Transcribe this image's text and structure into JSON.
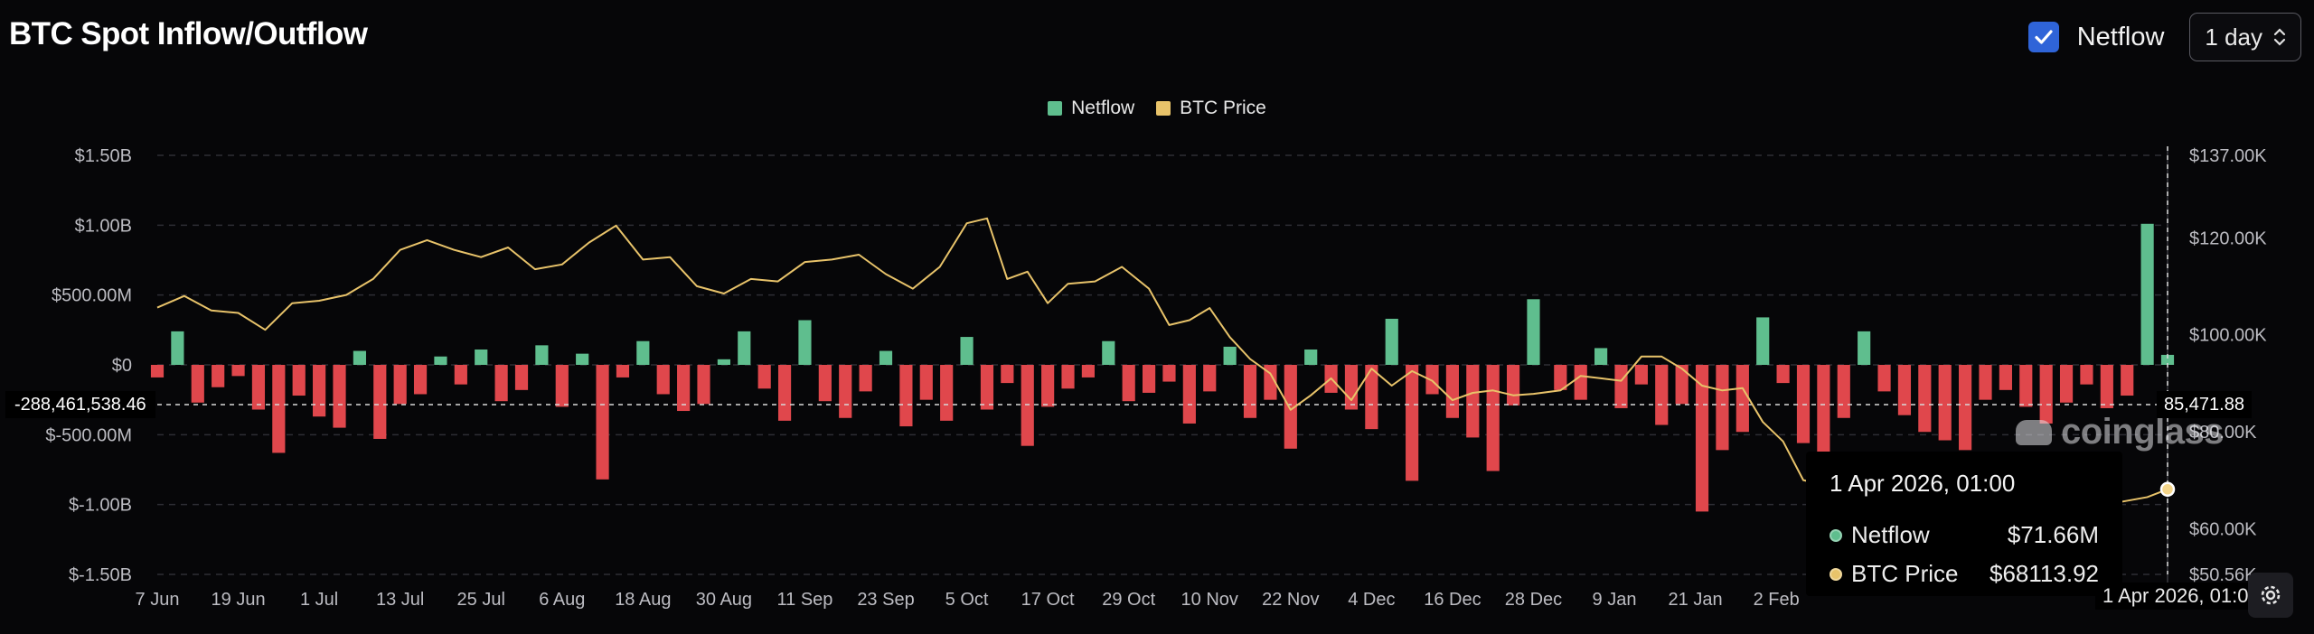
{
  "header": {
    "title": "BTC Spot Inflow/Outflow",
    "netflow_toggle_label": "Netflow",
    "netflow_checked": true,
    "interval_value": "1 day"
  },
  "legend": [
    {
      "label": "Netflow",
      "color": "#5fbe8e"
    },
    {
      "label": "BTC Price",
      "color": "#e8c36a"
    }
  ],
  "watermark": "coinglass",
  "tooltip": {
    "title": "1 Apr 2026, 01:00",
    "rows": [
      {
        "name": "Netflow",
        "value": "$71.66M",
        "color": "#5fbe8e"
      },
      {
        "name": "BTC Price",
        "value": "$68113.92",
        "color": "#e8c36a"
      }
    ]
  },
  "crosshair": {
    "left_value": "-288,461,538.46",
    "right_value": "85,471.88",
    "x_value": "1 Apr 2026, 01:00"
  },
  "colors": {
    "positive": "#5fbe8e",
    "negative": "#e0474c",
    "price": "#e8c36a",
    "grid": "#2e2e34"
  },
  "icons": {
    "checkbox": "check-icon",
    "select": "chevron-updown-icon",
    "settings": "gear-icon",
    "logo": "coinglass-logo-icon"
  },
  "chart_data": {
    "type": "bar",
    "title": "BTC Spot Inflow/Outflow",
    "left_axis": {
      "unit": "USD",
      "ticks": [
        1500000000,
        1000000000,
        500000000,
        0,
        -500000000,
        -1000000000,
        -1500000000
      ],
      "tick_labels": [
        "$1.50B",
        "$1.00B",
        "$500.00M",
        "$0",
        "$-500.00M",
        "$-1.00B",
        "$-1.50B"
      ],
      "ylim": [
        -1500000000,
        1500000000
      ]
    },
    "right_axis": {
      "unit": "USD",
      "ticks": [
        137000,
        120000,
        100000,
        80000,
        60000,
        50560
      ],
      "tick_labels": [
        "$137.00K",
        "$120.00K",
        "$100.00K",
        "$80.00K",
        "$60.00K",
        "$50.56K"
      ],
      "ylim": [
        50560,
        137000
      ]
    },
    "x_axis": {
      "start": "2025-06-07",
      "end": "2026-04-01",
      "tick_labels": [
        "7 Jun",
        "19 Jun",
        "1 Jul",
        "13 Jul",
        "25 Jul",
        "6 Aug",
        "18 Aug",
        "30 Aug",
        "11 Sep",
        "23 Sep",
        "5 Oct",
        "17 Oct",
        "29 Oct",
        "10 Nov",
        "22 Nov",
        "4 Dec",
        "16 Dec",
        "28 Dec",
        "9 Jan",
        "21 Jan",
        "2 Feb"
      ],
      "tick_dates": [
        "2025-06-07",
        "2025-06-19",
        "2025-07-01",
        "2025-07-13",
        "2025-07-25",
        "2025-08-06",
        "2025-08-18",
        "2025-08-30",
        "2025-09-11",
        "2025-09-23",
        "2025-10-05",
        "2025-10-17",
        "2025-10-29",
        "2025-11-10",
        "2025-11-22",
        "2025-12-04",
        "2025-12-16",
        "2025-12-28",
        "2026-01-09",
        "2026-01-21",
        "2026-02-02"
      ]
    },
    "series": [
      {
        "name": "Netflow",
        "type": "bar",
        "unit": "USD millions",
        "points": [
          [
            "2025-06-07",
            -90
          ],
          [
            "2025-06-10",
            240
          ],
          [
            "2025-06-13",
            -270
          ],
          [
            "2025-06-16",
            -160
          ],
          [
            "2025-06-19",
            -80
          ],
          [
            "2025-06-22",
            -320
          ],
          [
            "2025-06-25",
            -630
          ],
          [
            "2025-06-28",
            -220
          ],
          [
            "2025-07-01",
            -370
          ],
          [
            "2025-07-04",
            -450
          ],
          [
            "2025-07-07",
            100
          ],
          [
            "2025-07-10",
            -530
          ],
          [
            "2025-07-13",
            -280
          ],
          [
            "2025-07-16",
            -210
          ],
          [
            "2025-07-19",
            60
          ],
          [
            "2025-07-22",
            -140
          ],
          [
            "2025-07-25",
            110
          ],
          [
            "2025-07-28",
            -260
          ],
          [
            "2025-07-31",
            -180
          ],
          [
            "2025-08-03",
            140
          ],
          [
            "2025-08-06",
            -300
          ],
          [
            "2025-08-09",
            80
          ],
          [
            "2025-08-12",
            -820
          ],
          [
            "2025-08-15",
            -90
          ],
          [
            "2025-08-18",
            170
          ],
          [
            "2025-08-21",
            -210
          ],
          [
            "2025-08-24",
            -330
          ],
          [
            "2025-08-27",
            -280
          ],
          [
            "2025-08-30",
            40
          ],
          [
            "2025-09-02",
            240
          ],
          [
            "2025-09-05",
            -170
          ],
          [
            "2025-09-08",
            -400
          ],
          [
            "2025-09-11",
            320
          ],
          [
            "2025-09-14",
            -260
          ],
          [
            "2025-09-17",
            -380
          ],
          [
            "2025-09-20",
            -190
          ],
          [
            "2025-09-23",
            100
          ],
          [
            "2025-09-26",
            -440
          ],
          [
            "2025-09-29",
            -250
          ],
          [
            "2025-10-02",
            -400
          ],
          [
            "2025-10-05",
            200
          ],
          [
            "2025-10-08",
            -320
          ],
          [
            "2025-10-11",
            -130
          ],
          [
            "2025-10-14",
            -580
          ],
          [
            "2025-10-17",
            -300
          ],
          [
            "2025-10-20",
            -170
          ],
          [
            "2025-10-23",
            -90
          ],
          [
            "2025-10-26",
            170
          ],
          [
            "2025-10-29",
            -260
          ],
          [
            "2025-11-01",
            -200
          ],
          [
            "2025-11-04",
            -120
          ],
          [
            "2025-11-07",
            -420
          ],
          [
            "2025-11-10",
            -190
          ],
          [
            "2025-11-13",
            130
          ],
          [
            "2025-11-16",
            -380
          ],
          [
            "2025-11-19",
            -250
          ],
          [
            "2025-11-22",
            -600
          ],
          [
            "2025-11-25",
            110
          ],
          [
            "2025-11-28",
            -200
          ],
          [
            "2025-12-01",
            -320
          ],
          [
            "2025-12-04",
            -460
          ],
          [
            "2025-12-07",
            330
          ],
          [
            "2025-12-10",
            -830
          ],
          [
            "2025-12-13",
            -210
          ],
          [
            "2025-12-16",
            -380
          ],
          [
            "2025-12-19",
            -520
          ],
          [
            "2025-12-22",
            -760
          ],
          [
            "2025-12-25",
            -290
          ],
          [
            "2025-12-28",
            470
          ],
          [
            "2026-01-01",
            -180
          ],
          [
            "2026-01-04",
            -250
          ],
          [
            "2026-01-07",
            120
          ],
          [
            "2026-01-10",
            -310
          ],
          [
            "2026-01-13",
            -140
          ],
          [
            "2026-01-16",
            -430
          ],
          [
            "2026-01-19",
            -280
          ],
          [
            "2026-01-22",
            -1050
          ],
          [
            "2026-01-25",
            -610
          ],
          [
            "2026-01-28",
            -480
          ],
          [
            "2026-01-31",
            340
          ],
          [
            "2026-02-03",
            -130
          ],
          [
            "2026-02-06",
            -560
          ],
          [
            "2026-02-09",
            -820
          ],
          [
            "2026-02-12",
            -380
          ],
          [
            "2026-02-15",
            240
          ],
          [
            "2026-02-18",
            -190
          ],
          [
            "2026-02-21",
            -360
          ],
          [
            "2026-02-24",
            -480
          ],
          [
            "2026-02-27",
            -540
          ],
          [
            "2026-03-02",
            -610
          ],
          [
            "2026-03-05",
            -250
          ],
          [
            "2026-03-08",
            -180
          ],
          [
            "2026-03-11",
            -300
          ],
          [
            "2026-03-14",
            -420
          ],
          [
            "2026-03-17",
            -270
          ],
          [
            "2026-03-20",
            -140
          ],
          [
            "2026-03-23",
            -310
          ],
          [
            "2026-03-26",
            -220
          ],
          [
            "2026-03-29",
            1010
          ],
          [
            "2026-04-01",
            71.66
          ]
        ]
      },
      {
        "name": "BTC Price",
        "type": "line",
        "unit": "USD",
        "points": [
          [
            "2025-06-07",
            105600
          ],
          [
            "2025-06-11",
            108000
          ],
          [
            "2025-06-15",
            105000
          ],
          [
            "2025-06-19",
            104500
          ],
          [
            "2025-06-23",
            101000
          ],
          [
            "2025-06-27",
            106500
          ],
          [
            "2025-07-01",
            107000
          ],
          [
            "2025-07-05",
            108200
          ],
          [
            "2025-07-09",
            111500
          ],
          [
            "2025-07-13",
            117500
          ],
          [
            "2025-07-17",
            119500
          ],
          [
            "2025-07-21",
            117500
          ],
          [
            "2025-07-25",
            116000
          ],
          [
            "2025-07-29",
            118000
          ],
          [
            "2025-08-02",
            113500
          ],
          [
            "2025-08-06",
            114500
          ],
          [
            "2025-08-10",
            119000
          ],
          [
            "2025-08-14",
            122500
          ],
          [
            "2025-08-18",
            115500
          ],
          [
            "2025-08-22",
            116000
          ],
          [
            "2025-08-26",
            110000
          ],
          [
            "2025-08-30",
            108500
          ],
          [
            "2025-09-03",
            111500
          ],
          [
            "2025-09-07",
            111000
          ],
          [
            "2025-09-11",
            115000
          ],
          [
            "2025-09-15",
            115500
          ],
          [
            "2025-09-19",
            116500
          ],
          [
            "2025-09-23",
            112500
          ],
          [
            "2025-09-27",
            109500
          ],
          [
            "2025-10-01",
            114000
          ],
          [
            "2025-10-05",
            123000
          ],
          [
            "2025-10-08",
            124000
          ],
          [
            "2025-10-11",
            111500
          ],
          [
            "2025-10-14",
            113000
          ],
          [
            "2025-10-17",
            106500
          ],
          [
            "2025-10-20",
            110500
          ],
          [
            "2025-10-24",
            111000
          ],
          [
            "2025-10-28",
            114000
          ],
          [
            "2025-11-01",
            109500
          ],
          [
            "2025-11-04",
            102000
          ],
          [
            "2025-11-07",
            103000
          ],
          [
            "2025-11-10",
            105500
          ],
          [
            "2025-11-13",
            99500
          ],
          [
            "2025-11-16",
            95000
          ],
          [
            "2025-11-19",
            92000
          ],
          [
            "2025-11-22",
            84500
          ],
          [
            "2025-11-25",
            87500
          ],
          [
            "2025-11-28",
            91000
          ],
          [
            "2025-12-01",
            86500
          ],
          [
            "2025-12-04",
            93000
          ],
          [
            "2025-12-07",
            89500
          ],
          [
            "2025-12-10",
            92500
          ],
          [
            "2025-12-13",
            90500
          ],
          [
            "2025-12-16",
            86500
          ],
          [
            "2025-12-19",
            88000
          ],
          [
            "2025-12-22",
            88500
          ],
          [
            "2025-12-25",
            87500
          ],
          [
            "2025-12-28",
            87800
          ],
          [
            "2026-01-01",
            88500
          ],
          [
            "2026-01-04",
            91500
          ],
          [
            "2026-01-07",
            91000
          ],
          [
            "2026-01-10",
            90500
          ],
          [
            "2026-01-13",
            95500
          ],
          [
            "2026-01-16",
            95500
          ],
          [
            "2026-01-19",
            93000
          ],
          [
            "2026-01-22",
            89500
          ],
          [
            "2026-01-25",
            88500
          ],
          [
            "2026-01-28",
            89000
          ],
          [
            "2026-01-31",
            82000
          ],
          [
            "2026-02-03",
            78000
          ],
          [
            "2026-02-06",
            70000
          ],
          [
            "2026-02-09",
            69000
          ],
          [
            "2026-02-12",
            66500
          ],
          [
            "2026-02-15",
            68500
          ]
        ]
      }
    ],
    "crosshair_point": {
      "date": "2026-04-01",
      "netflow": "$71.66M",
      "price": "$68113.92"
    },
    "legend_position": "top-center",
    "grid": true
  }
}
